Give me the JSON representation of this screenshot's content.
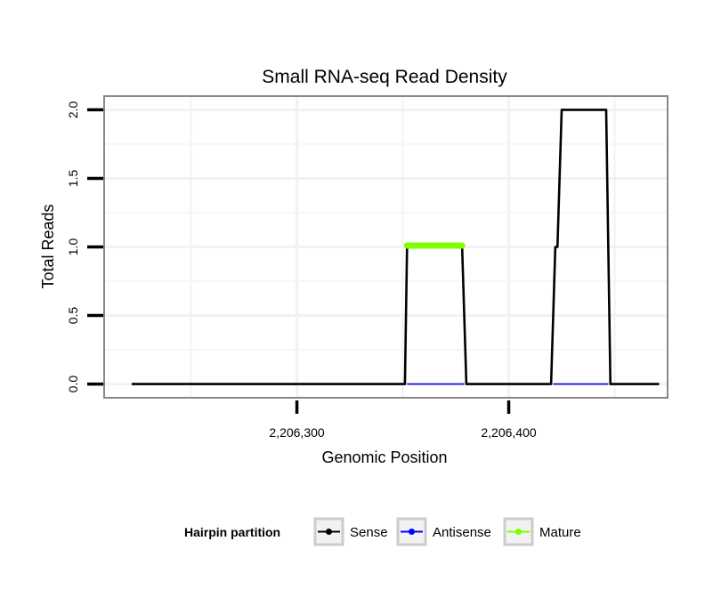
{
  "chart_data": {
    "type": "line",
    "title": "Small RNA-seq Read Density",
    "xlabel": "Genomic Position",
    "ylabel": "Total Reads",
    "xlim": [
      2206209,
      2206475
    ],
    "ylim": [
      -0.1,
      2.1
    ],
    "x_ticks": [
      {
        "value": 2206300,
        "label": "2,206,300"
      },
      {
        "value": 2206400,
        "label": "2,206,400"
      }
    ],
    "y_ticks": [
      {
        "value": 0,
        "label": "0.0"
      },
      {
        "value": 0.5,
        "label": "0.5"
      },
      {
        "value": 1,
        "label": "1.0"
      },
      {
        "value": 1.5,
        "label": "1.5"
      },
      {
        "value": 2,
        "label": "2.0"
      }
    ],
    "series": [
      {
        "name": "Sense",
        "color": "#000000",
        "x": [
          2206222,
          2206351,
          2206352,
          2206378,
          2206380,
          2206420,
          2206422,
          2206423,
          2206425,
          2206446,
          2206448,
          2206471
        ],
        "y": [
          0,
          0,
          1,
          1,
          0,
          0,
          1,
          1,
          2,
          2,
          0,
          0
        ]
      },
      {
        "name": "Antisense",
        "color": "#0000ff",
        "x": [
          2206352,
          2206379,
          2206421,
          2206447
        ],
        "y": [
          0,
          0,
          0,
          0
        ],
        "segments": [
          [
            0,
            1
          ],
          [
            2,
            3
          ]
        ]
      },
      {
        "name": "Mature",
        "color": "#7fff00",
        "x": [
          2206352,
          2206378
        ],
        "y": [
          1.01,
          1.01
        ]
      }
    ],
    "legend": {
      "title": "Hairpin partition",
      "position": "bottom",
      "items": [
        "Sense",
        "Antisense",
        "Mature"
      ]
    }
  }
}
